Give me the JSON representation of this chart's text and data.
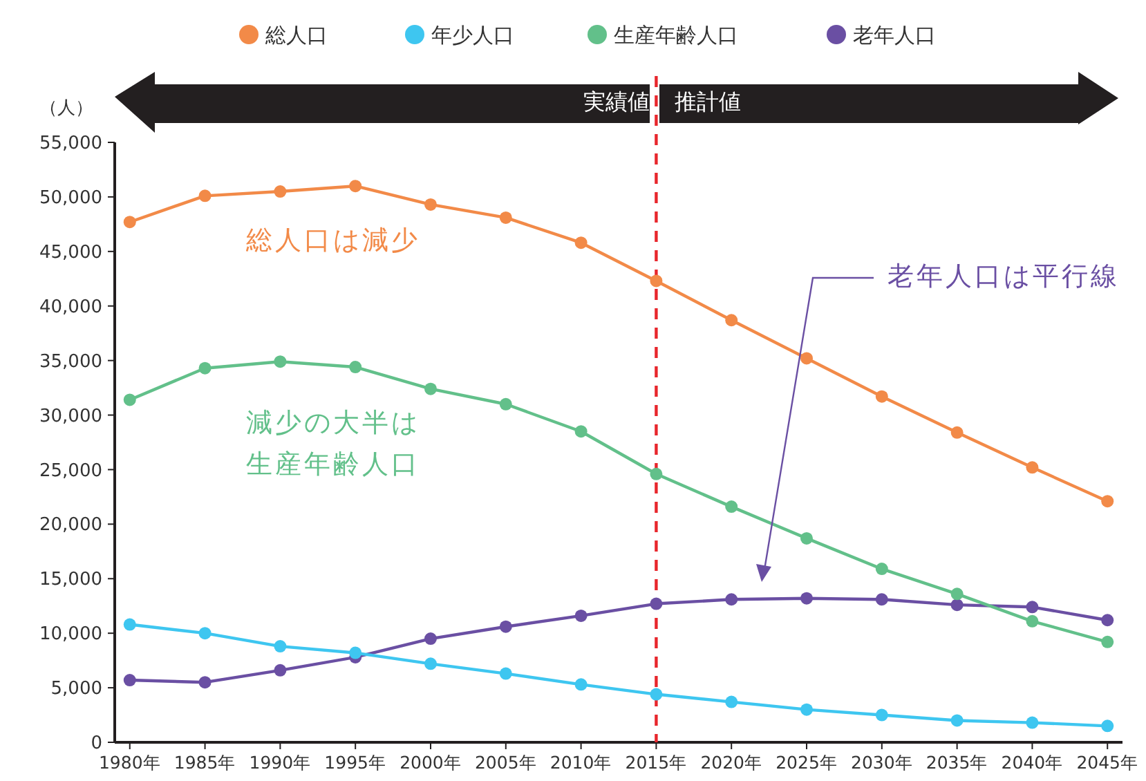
{
  "chart_data": {
    "type": "line",
    "ylabel": "（人）",
    "x": [
      1980,
      1985,
      1990,
      1995,
      2000,
      2005,
      2010,
      2015,
      2020,
      2025,
      2030,
      2035,
      2040,
      2045
    ],
    "xlim": [
      1979,
      2046
    ],
    "xticks": [
      {
        "value": 1980,
        "label": "1980年"
      },
      {
        "value": 1985,
        "label": "1985年"
      },
      {
        "value": 1990,
        "label": "1990年"
      },
      {
        "value": 1995,
        "label": "1995年"
      },
      {
        "value": 2000,
        "label": "2000年"
      },
      {
        "value": 2005,
        "label": "2005年"
      },
      {
        "value": 2010,
        "label": "2010年"
      },
      {
        "value": 2015,
        "label": "2015年"
      },
      {
        "value": 2020,
        "label": "2020年"
      },
      {
        "value": 2025,
        "label": "2025年"
      },
      {
        "value": 2030,
        "label": "2030年"
      },
      {
        "value": 2035,
        "label": "2035年"
      },
      {
        "value": 2040,
        "label": "2040年"
      },
      {
        "value": 2045,
        "label": "2045年"
      }
    ],
    "ylim": [
      0,
      55000
    ],
    "yticks": [
      {
        "value": 0,
        "label": "0"
      },
      {
        "value": 5000,
        "label": "5,000"
      },
      {
        "value": 10000,
        "label": "10,000"
      },
      {
        "value": 15000,
        "label": "15,000"
      },
      {
        "value": 20000,
        "label": "20,000"
      },
      {
        "value": 25000,
        "label": "25,000"
      },
      {
        "value": 30000,
        "label": "30,000"
      },
      {
        "value": 35000,
        "label": "35,000"
      },
      {
        "value": 40000,
        "label": "40,000"
      },
      {
        "value": 45000,
        "label": "45,000"
      },
      {
        "value": 50000,
        "label": "50,000"
      },
      {
        "value": 55000,
        "label": "55,000"
      }
    ],
    "series": [
      {
        "name": "総人口",
        "color": "#f28a48",
        "values": [
          47700,
          50100,
          50500,
          51000,
          49300,
          48100,
          45800,
          42300,
          38700,
          35200,
          31700,
          28400,
          25200,
          22100
        ]
      },
      {
        "name": "年少人口",
        "color": "#3ec6f0",
        "values": [
          10800,
          10000,
          8800,
          8200,
          7200,
          6300,
          5300,
          4400,
          3700,
          3000,
          2500,
          2000,
          1800,
          1500
        ]
      },
      {
        "name": "生産年齢人口",
        "color": "#62c08a",
        "values": [
          31400,
          34300,
          34900,
          34400,
          32400,
          31000,
          28500,
          24600,
          21600,
          18700,
          15900,
          13600,
          11100,
          9200
        ]
      },
      {
        "name": "老年人口",
        "color": "#6a4fa3",
        "values": [
          5700,
          5500,
          6600,
          7800,
          9500,
          10600,
          11600,
          12700,
          13100,
          13200,
          13100,
          12600,
          12400,
          11200
        ]
      }
    ],
    "ref_lines": [
      {
        "axis": "x",
        "value": 2015,
        "label": null,
        "color": "#e8262c",
        "line_style": "dashed"
      }
    ],
    "annotations": [
      "実績値",
      "推計値",
      "総人口は減少",
      "減少の大半は",
      "生産年齢人口",
      "老年人口は平行線"
    ],
    "marker": "circle",
    "line_style": "solid",
    "legend": "top",
    "grid": false
  }
}
